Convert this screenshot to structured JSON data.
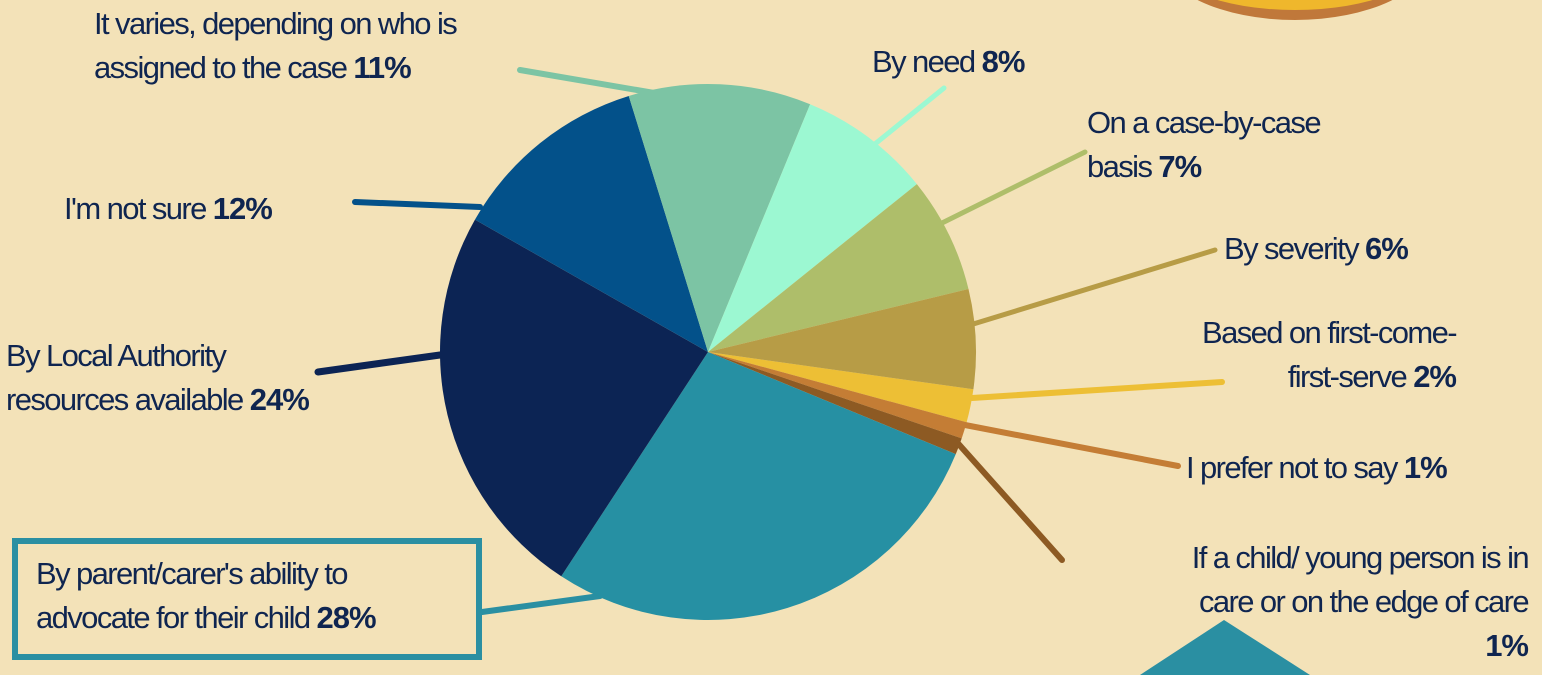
{
  "chart_data": {
    "type": "pie",
    "slices": [
      {
        "label_lines": [
          "By parent/carer's ability  to",
          "advocate for their child"
        ],
        "pct": "28%",
        "value": 28,
        "color": "#2690a3"
      },
      {
        "label_lines": [
          "By Local Authority",
          "resources  available"
        ],
        "pct": "24%",
        "value": 24,
        "color": "#0c2454"
      },
      {
        "label_lines": [
          "I'm not sure"
        ],
        "pct": "12%",
        "value": 12,
        "color": "#03518a"
      },
      {
        "label_lines": [
          "It varies, depending on who is",
          "assigned to the case"
        ],
        "pct": "11%",
        "value": 11,
        "color": "#7cc4a4"
      },
      {
        "label_lines": [
          "By need"
        ],
        "pct": "8%",
        "value": 8,
        "color": "#9cf8d2"
      },
      {
        "label_lines": [
          "On a case-by-case",
          "basis"
        ],
        "pct": "7%",
        "value": 7,
        "color": "#aebe6a"
      },
      {
        "label_lines": [
          "By severity"
        ],
        "pct": "6%",
        "value": 6,
        "color": "#b79c46"
      },
      {
        "label_lines": [
          "Based on first-come-",
          "first-serve"
        ],
        "pct": "2%",
        "value": 2,
        "color": "#edbf35"
      },
      {
        "label_lines": [
          "I prefer not to say"
        ],
        "pct": "1%",
        "value": 1,
        "color": "#c47d35"
      },
      {
        "label_lines": [
          "If a child/ young person is in",
          "care or on the edge of care"
        ],
        "pct": "1%",
        "value": 1,
        "color": "#8d5a23"
      }
    ]
  }
}
